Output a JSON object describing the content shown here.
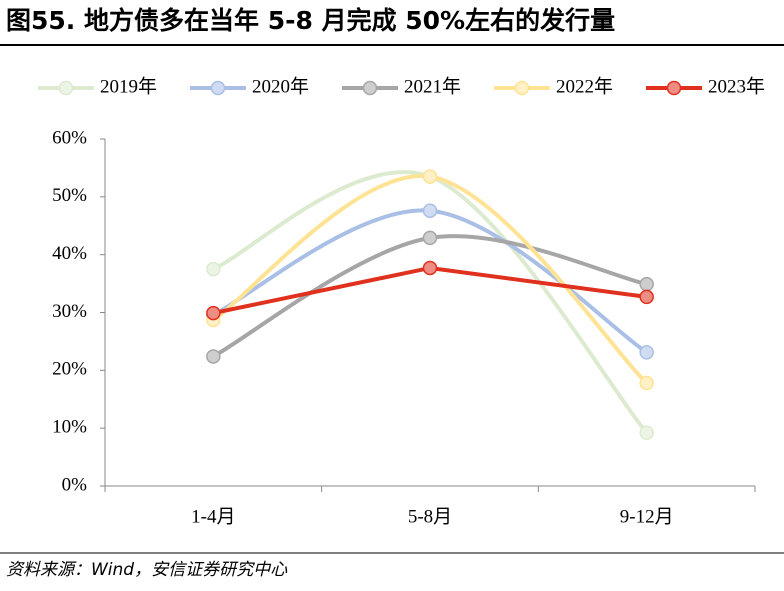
{
  "chart_data": {
    "type": "line",
    "title": "图55. 地方债多在当年 5-8 月完成 50%左右的发行量",
    "source": "资料来源：Wind，安信证券研究中心",
    "categories": [
      "1-4月",
      "5-8月",
      "9-12月"
    ],
    "series": [
      {
        "name": "2019年",
        "color": "#dcebd0",
        "smooth": true,
        "values": [
          37.5,
          53.5,
          9.2
        ]
      },
      {
        "name": "2020年",
        "color": "#a9bfe6",
        "smooth": true,
        "values": [
          29.6,
          47.6,
          23.1
        ]
      },
      {
        "name": "2021年",
        "color": "#a6a6a6",
        "smooth": true,
        "values": [
          22.4,
          42.9,
          34.9
        ]
      },
      {
        "name": "2022年",
        "color": "#ffe395",
        "smooth": true,
        "values": [
          28.7,
          53.5,
          17.8
        ]
      },
      {
        "name": "2023年",
        "color": "#e0301e",
        "smooth": false,
        "values": [
          29.9,
          37.7,
          32.7
        ]
      }
    ],
    "ylim": [
      0,
      60
    ],
    "yticks": [
      {
        "value": 0,
        "label": "0%"
      },
      {
        "value": 10,
        "label": "10%"
      },
      {
        "value": 20,
        "label": "20%"
      },
      {
        "value": 30,
        "label": "30%"
      },
      {
        "value": 40,
        "label": "40%"
      },
      {
        "value": 50,
        "label": "50%"
      },
      {
        "value": 60,
        "label": "60%"
      }
    ],
    "legend": "top"
  }
}
